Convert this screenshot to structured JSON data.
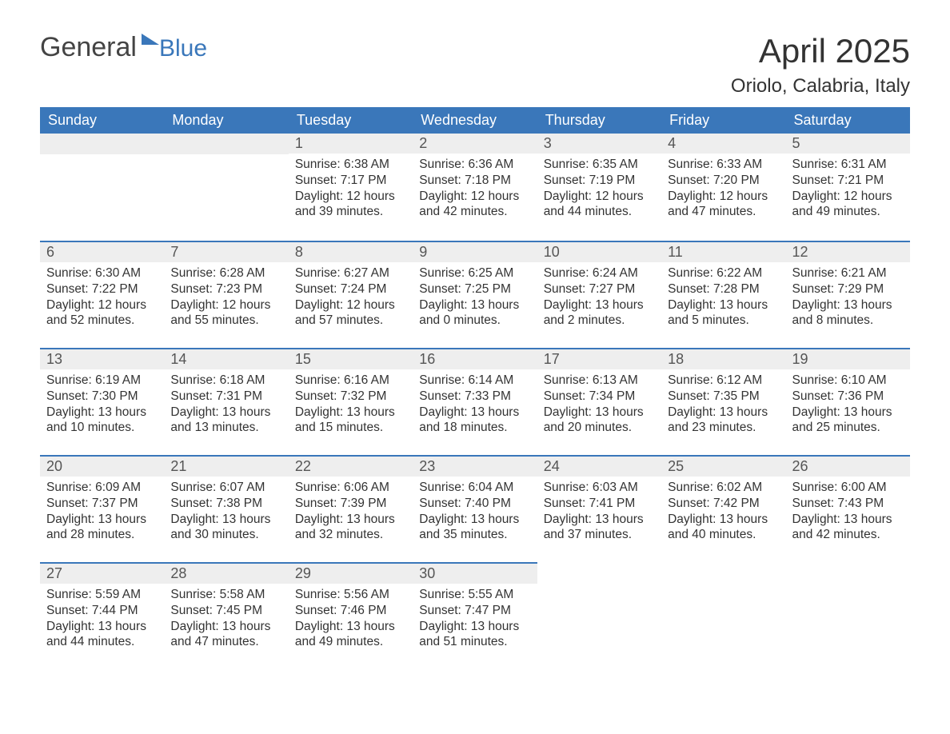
{
  "logo": {
    "word1": "General",
    "word2": "Blue"
  },
  "title": "April 2025",
  "location": "Oriolo, Calabria, Italy",
  "colors": {
    "header_bg": "#3a77ba",
    "header_text": "#ffffff",
    "daynum_bg": "#eeeeee",
    "week_separator": "#3a77ba",
    "body_text": "#333333",
    "page_bg": "#ffffff",
    "logo_grey": "#444444",
    "logo_blue": "#3a77ba"
  },
  "weekday_labels": [
    "Sunday",
    "Monday",
    "Tuesday",
    "Wednesday",
    "Thursday",
    "Friday",
    "Saturday"
  ],
  "labels": {
    "sunrise_prefix": "Sunrise: ",
    "sunset_prefix": "Sunset: ",
    "daylight_prefix": "Daylight: ",
    "hours_word": " hours",
    "and_word": "and ",
    "minutes_suffix": " minutes."
  },
  "weeks": [
    [
      null,
      null,
      {
        "n": "1",
        "sunrise": "6:38 AM",
        "sunset": "7:17 PM",
        "dl_h": "12",
        "dl_m": "39"
      },
      {
        "n": "2",
        "sunrise": "6:36 AM",
        "sunset": "7:18 PM",
        "dl_h": "12",
        "dl_m": "42"
      },
      {
        "n": "3",
        "sunrise": "6:35 AM",
        "sunset": "7:19 PM",
        "dl_h": "12",
        "dl_m": "44"
      },
      {
        "n": "4",
        "sunrise": "6:33 AM",
        "sunset": "7:20 PM",
        "dl_h": "12",
        "dl_m": "47"
      },
      {
        "n": "5",
        "sunrise": "6:31 AM",
        "sunset": "7:21 PM",
        "dl_h": "12",
        "dl_m": "49"
      }
    ],
    [
      {
        "n": "6",
        "sunrise": "6:30 AM",
        "sunset": "7:22 PM",
        "dl_h": "12",
        "dl_m": "52"
      },
      {
        "n": "7",
        "sunrise": "6:28 AM",
        "sunset": "7:23 PM",
        "dl_h": "12",
        "dl_m": "55"
      },
      {
        "n": "8",
        "sunrise": "6:27 AM",
        "sunset": "7:24 PM",
        "dl_h": "12",
        "dl_m": "57"
      },
      {
        "n": "9",
        "sunrise": "6:25 AM",
        "sunset": "7:25 PM",
        "dl_h": "13",
        "dl_m": "0"
      },
      {
        "n": "10",
        "sunrise": "6:24 AM",
        "sunset": "7:27 PM",
        "dl_h": "13",
        "dl_m": "2"
      },
      {
        "n": "11",
        "sunrise": "6:22 AM",
        "sunset": "7:28 PM",
        "dl_h": "13",
        "dl_m": "5"
      },
      {
        "n": "12",
        "sunrise": "6:21 AM",
        "sunset": "7:29 PM",
        "dl_h": "13",
        "dl_m": "8"
      }
    ],
    [
      {
        "n": "13",
        "sunrise": "6:19 AM",
        "sunset": "7:30 PM",
        "dl_h": "13",
        "dl_m": "10"
      },
      {
        "n": "14",
        "sunrise": "6:18 AM",
        "sunset": "7:31 PM",
        "dl_h": "13",
        "dl_m": "13"
      },
      {
        "n": "15",
        "sunrise": "6:16 AM",
        "sunset": "7:32 PM",
        "dl_h": "13",
        "dl_m": "15"
      },
      {
        "n": "16",
        "sunrise": "6:14 AM",
        "sunset": "7:33 PM",
        "dl_h": "13",
        "dl_m": "18"
      },
      {
        "n": "17",
        "sunrise": "6:13 AM",
        "sunset": "7:34 PM",
        "dl_h": "13",
        "dl_m": "20"
      },
      {
        "n": "18",
        "sunrise": "6:12 AM",
        "sunset": "7:35 PM",
        "dl_h": "13",
        "dl_m": "23"
      },
      {
        "n": "19",
        "sunrise": "6:10 AM",
        "sunset": "7:36 PM",
        "dl_h": "13",
        "dl_m": "25"
      }
    ],
    [
      {
        "n": "20",
        "sunrise": "6:09 AM",
        "sunset": "7:37 PM",
        "dl_h": "13",
        "dl_m": "28"
      },
      {
        "n": "21",
        "sunrise": "6:07 AM",
        "sunset": "7:38 PM",
        "dl_h": "13",
        "dl_m": "30"
      },
      {
        "n": "22",
        "sunrise": "6:06 AM",
        "sunset": "7:39 PM",
        "dl_h": "13",
        "dl_m": "32"
      },
      {
        "n": "23",
        "sunrise": "6:04 AM",
        "sunset": "7:40 PM",
        "dl_h": "13",
        "dl_m": "35"
      },
      {
        "n": "24",
        "sunrise": "6:03 AM",
        "sunset": "7:41 PM",
        "dl_h": "13",
        "dl_m": "37"
      },
      {
        "n": "25",
        "sunrise": "6:02 AM",
        "sunset": "7:42 PM",
        "dl_h": "13",
        "dl_m": "40"
      },
      {
        "n": "26",
        "sunrise": "6:00 AM",
        "sunset": "7:43 PM",
        "dl_h": "13",
        "dl_m": "42"
      }
    ],
    [
      {
        "n": "27",
        "sunrise": "5:59 AM",
        "sunset": "7:44 PM",
        "dl_h": "13",
        "dl_m": "44"
      },
      {
        "n": "28",
        "sunrise": "5:58 AM",
        "sunset": "7:45 PM",
        "dl_h": "13",
        "dl_m": "47"
      },
      {
        "n": "29",
        "sunrise": "5:56 AM",
        "sunset": "7:46 PM",
        "dl_h": "13",
        "dl_m": "49"
      },
      {
        "n": "30",
        "sunrise": "5:55 AM",
        "sunset": "7:47 PM",
        "dl_h": "13",
        "dl_m": "51"
      },
      null,
      null,
      null
    ]
  ]
}
